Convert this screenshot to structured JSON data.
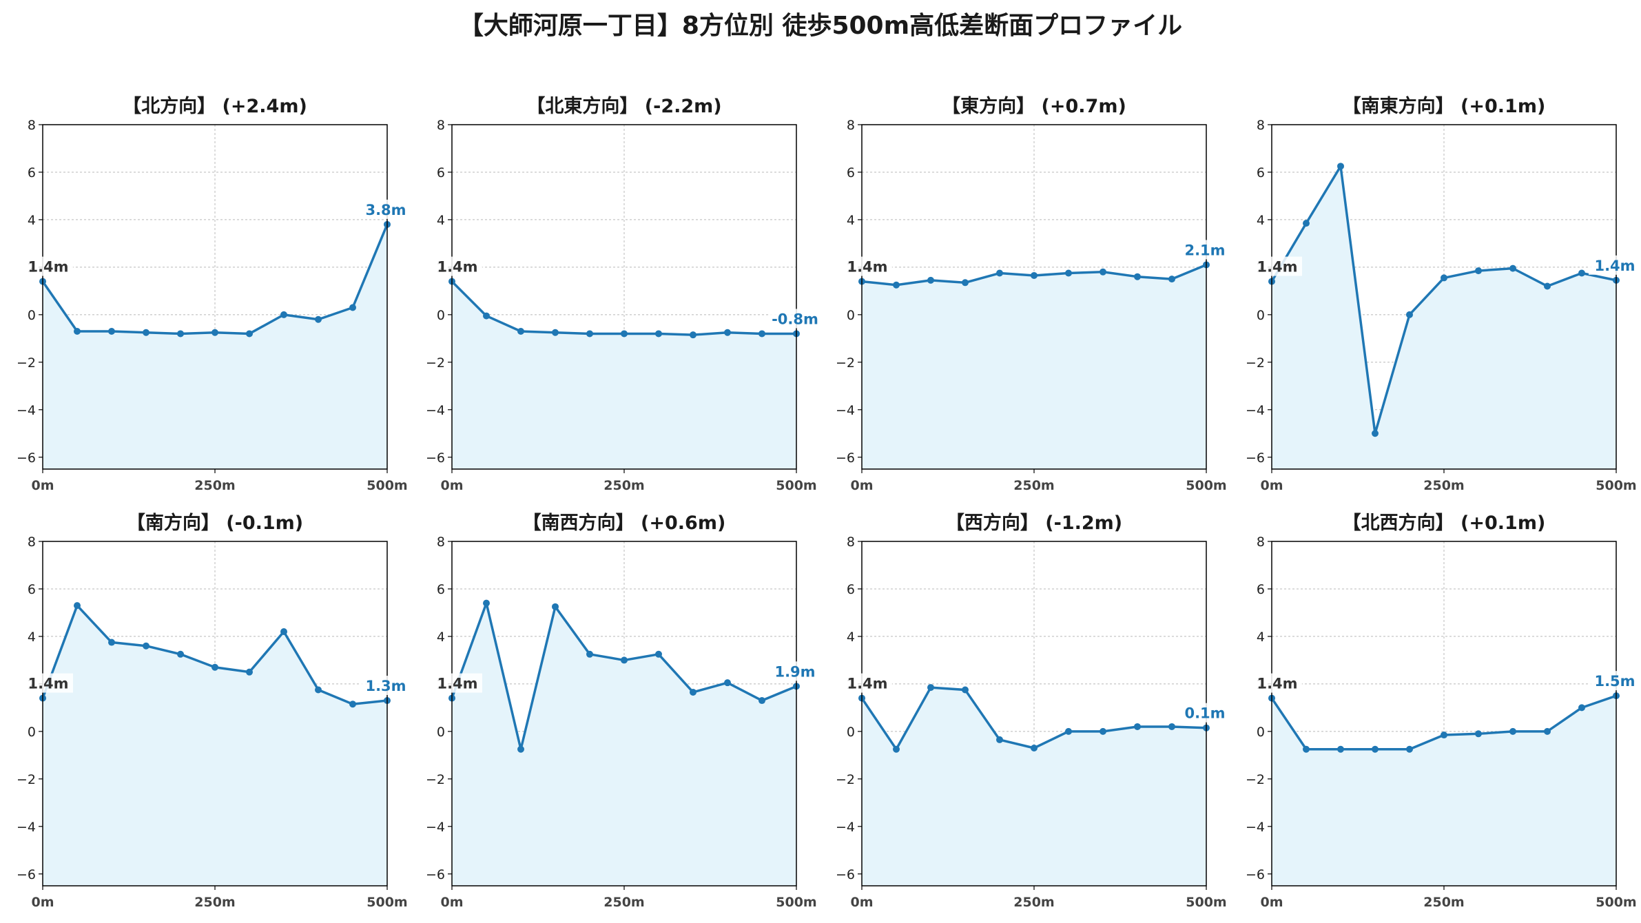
{
  "title": "【大師河原一丁目】8方位別 徒歩500m高低差断面プロファイル",
  "colors": {
    "line": "#1f77b4",
    "fill": "#e5f4fb",
    "start_label": "#333333",
    "end_label": "#1f77b4",
    "grid": "#b8b8b8"
  },
  "chart_data": [
    {
      "type": "line",
      "title": "【北方向】 (+2.4m)",
      "x": [
        0,
        50,
        100,
        150,
        200,
        250,
        300,
        350,
        400,
        450,
        500
      ],
      "values": [
        1.4,
        -0.7,
        -0.7,
        -0.75,
        -0.8,
        -0.75,
        -0.8,
        0.0,
        -0.2,
        0.3,
        3.8
      ],
      "start_label": "1.4m",
      "end_label": "3.8m",
      "xlim": [
        0,
        500
      ],
      "ylim": [
        -6.5,
        8
      ],
      "yticks": [
        -6,
        -4,
        -2,
        0,
        2,
        4,
        6,
        8
      ],
      "xticks": [
        0,
        250,
        500
      ],
      "xticklabels": [
        "0m",
        "250m",
        "500m"
      ],
      "grid": true
    },
    {
      "type": "line",
      "title": "【北東方向】 (-2.2m)",
      "x": [
        0,
        50,
        100,
        150,
        200,
        250,
        300,
        350,
        400,
        450,
        500
      ],
      "values": [
        1.4,
        -0.05,
        -0.7,
        -0.75,
        -0.8,
        -0.8,
        -0.8,
        -0.85,
        -0.75,
        -0.8,
        -0.8
      ],
      "start_label": "1.4m",
      "end_label": "-0.8m",
      "xlim": [
        0,
        500
      ],
      "ylim": [
        -6.5,
        8
      ],
      "yticks": [
        -6,
        -4,
        -2,
        0,
        2,
        4,
        6,
        8
      ],
      "xticks": [
        0,
        250,
        500
      ],
      "xticklabels": [
        "0m",
        "250m",
        "500m"
      ],
      "grid": true
    },
    {
      "type": "line",
      "title": "【東方向】 (+0.7m)",
      "x": [
        0,
        50,
        100,
        150,
        200,
        250,
        300,
        350,
        400,
        450,
        500
      ],
      "values": [
        1.4,
        1.25,
        1.45,
        1.35,
        1.75,
        1.65,
        1.75,
        1.8,
        1.6,
        1.5,
        2.1
      ],
      "start_label": "1.4m",
      "end_label": "2.1m",
      "xlim": [
        0,
        500
      ],
      "ylim": [
        -6.5,
        8
      ],
      "yticks": [
        -6,
        -4,
        -2,
        0,
        2,
        4,
        6,
        8
      ],
      "xticks": [
        0,
        250,
        500
      ],
      "xticklabels": [
        "0m",
        "250m",
        "500m"
      ],
      "grid": true
    },
    {
      "type": "line",
      "title": "【南東方向】 (+0.1m)",
      "x": [
        0,
        50,
        100,
        150,
        200,
        250,
        300,
        350,
        400,
        450,
        500
      ],
      "values": [
        1.4,
        3.85,
        6.25,
        -5.0,
        0.0,
        1.55,
        1.85,
        1.95,
        1.2,
        1.75,
        1.45
      ],
      "start_label": "1.4m",
      "end_label": "1.4m",
      "xlim": [
        0,
        500
      ],
      "ylim": [
        -6.5,
        8
      ],
      "yticks": [
        -6,
        -4,
        -2,
        0,
        2,
        4,
        6,
        8
      ],
      "xticks": [
        0,
        250,
        500
      ],
      "xticklabels": [
        "0m",
        "250m",
        "500m"
      ],
      "grid": true
    },
    {
      "type": "line",
      "title": "【南方向】 (-0.1m)",
      "x": [
        0,
        50,
        100,
        150,
        200,
        250,
        300,
        350,
        400,
        450,
        500
      ],
      "values": [
        1.4,
        5.3,
        3.75,
        3.6,
        3.25,
        2.7,
        2.5,
        4.2,
        1.75,
        1.15,
        1.3
      ],
      "start_label": "1.4m",
      "end_label": "1.3m",
      "xlim": [
        0,
        500
      ],
      "ylim": [
        -6.5,
        8
      ],
      "yticks": [
        -6,
        -4,
        -2,
        0,
        2,
        4,
        6,
        8
      ],
      "xticks": [
        0,
        250,
        500
      ],
      "xticklabels": [
        "0m",
        "250m",
        "500m"
      ],
      "grid": true
    },
    {
      "type": "line",
      "title": "【南西方向】 (+0.6m)",
      "x": [
        0,
        50,
        100,
        150,
        200,
        250,
        300,
        350,
        400,
        450,
        500
      ],
      "values": [
        1.4,
        5.4,
        -0.75,
        5.25,
        3.25,
        3.0,
        3.25,
        1.65,
        2.05,
        1.3,
        1.9
      ],
      "start_label": "1.4m",
      "end_label": "1.9m",
      "xlim": [
        0,
        500
      ],
      "ylim": [
        -6.5,
        8
      ],
      "yticks": [
        -6,
        -4,
        -2,
        0,
        2,
        4,
        6,
        8
      ],
      "xticks": [
        0,
        250,
        500
      ],
      "xticklabels": [
        "0m",
        "250m",
        "500m"
      ],
      "grid": true
    },
    {
      "type": "line",
      "title": "【西方向】 (-1.2m)",
      "x": [
        0,
        50,
        100,
        150,
        200,
        250,
        300,
        350,
        400,
        450,
        500
      ],
      "values": [
        1.4,
        -0.75,
        1.85,
        1.75,
        -0.35,
        -0.7,
        0.0,
        0.0,
        0.2,
        0.2,
        0.15
      ],
      "start_label": "1.4m",
      "end_label": "0.1m",
      "xlim": [
        0,
        500
      ],
      "ylim": [
        -6.5,
        8
      ],
      "yticks": [
        -6,
        -4,
        -2,
        0,
        2,
        4,
        6,
        8
      ],
      "xticks": [
        0,
        250,
        500
      ],
      "xticklabels": [
        "0m",
        "250m",
        "500m"
      ],
      "grid": true
    },
    {
      "type": "line",
      "title": "【北西方向】 (+0.1m)",
      "x": [
        0,
        50,
        100,
        150,
        200,
        250,
        300,
        350,
        400,
        450,
        500
      ],
      "values": [
        1.4,
        -0.75,
        -0.75,
        -0.75,
        -0.75,
        -0.15,
        -0.1,
        0.0,
        0.0,
        1.0,
        1.5
      ],
      "start_label": "1.4m",
      "end_label": "1.5m",
      "xlim": [
        0,
        500
      ],
      "ylim": [
        -6.5,
        8
      ],
      "yticks": [
        -6,
        -4,
        -2,
        0,
        2,
        4,
        6,
        8
      ],
      "xticks": [
        0,
        250,
        500
      ],
      "xticklabels": [
        "0m",
        "250m",
        "500m"
      ],
      "grid": true
    }
  ]
}
